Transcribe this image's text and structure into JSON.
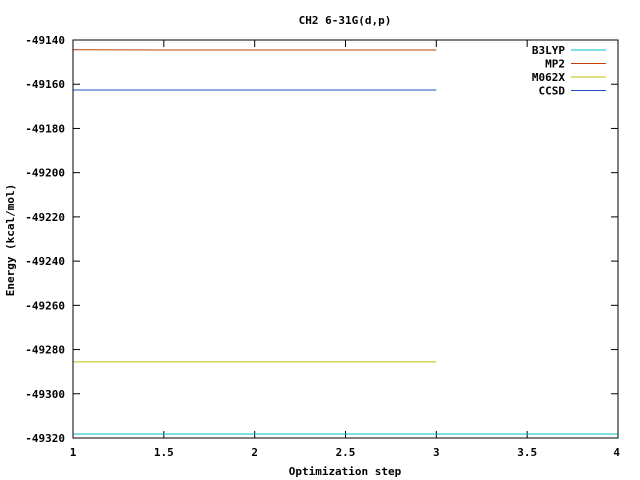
{
  "chart_data": {
    "type": "line",
    "title": "CH2 6-31G(d,p)",
    "xlabel": "Optimization step",
    "ylabel": "Energy (kcal/mol)",
    "xlim": [
      1,
      4
    ],
    "ylim": [
      -49320,
      -49140
    ],
    "x_ticks": [
      1,
      1.5,
      2,
      2.5,
      3,
      3.5,
      4
    ],
    "x_tick_labels": [
      "1",
      "1.5",
      "2",
      "2.5",
      "3",
      "3.5",
      "4"
    ],
    "y_ticks": [
      -49140,
      -49160,
      -49180,
      -49200,
      -49220,
      -49240,
      -49260,
      -49280,
      -49300,
      -49320
    ],
    "y_tick_labels": [
      "-49140",
      "-49160",
      "-49180",
      "-49200",
      "-49220",
      "-49240",
      "-49260",
      "-49280",
      "-49300",
      "-49320"
    ],
    "legend_position": "top-right",
    "series": [
      {
        "name": "B3LYP",
        "color": "#00c0d0",
        "x": [
          1,
          2,
          3,
          4
        ],
        "values": [
          -49318.2,
          -49318.2,
          -49318.2,
          -49318.2
        ]
      },
      {
        "name": "MP2",
        "color": "#c04000",
        "x": [
          1,
          1.5,
          2,
          3
        ],
        "values": [
          -49144.4,
          -49144.5,
          -49144.5,
          -49144.5
        ]
      },
      {
        "name": "M062X",
        "color": "#c0c000",
        "x": [
          1,
          2,
          3
        ],
        "values": [
          -49285.6,
          -49285.6,
          -49285.6
        ]
      },
      {
        "name": "CCSD",
        "color": "#2050c0",
        "x": [
          1,
          2,
          3
        ],
        "values": [
          -49162.6,
          -49162.6,
          -49162.6
        ]
      }
    ]
  }
}
